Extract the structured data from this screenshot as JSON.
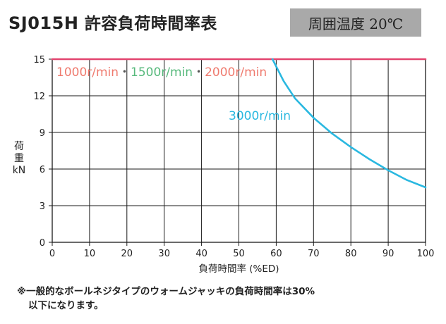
{
  "title": {
    "model": "SJ015H",
    "text": "許容負荷時間率表"
  },
  "temperature_badge": "周囲温度 20℃",
  "chart_data": {
    "type": "line",
    "xlabel": "負荷時間率 (%ED)",
    "ylabel": [
      "荷",
      "重",
      "kN"
    ],
    "xlim": [
      0,
      100
    ],
    "ylim": [
      0,
      15
    ],
    "xticks": [
      0,
      10,
      20,
      30,
      40,
      50,
      60,
      70,
      80,
      90,
      100
    ],
    "yticks": [
      0,
      3,
      6,
      9,
      12,
      15
    ],
    "grid": true,
    "series": [
      {
        "name": "1000r/min・1500r/min・2000r/min",
        "label_parts": [
          {
            "text": "1000r/min",
            "color": "#ef7b6f"
          },
          {
            "text": "・",
            "color": "#555555"
          },
          {
            "text": "1500r/min",
            "color": "#57b97c"
          },
          {
            "text": "・",
            "color": "#555555"
          },
          {
            "text": "2000r/min",
            "color": "#ef7b6f"
          }
        ],
        "color": "#e2456f",
        "x": [
          0,
          100
        ],
        "y": [
          15,
          15
        ]
      },
      {
        "name": "3000r/min",
        "color": "#2ab8e0",
        "x": [
          59,
          62,
          65,
          70,
          75,
          80,
          85,
          90,
          95,
          100
        ],
        "y": [
          15,
          13.2,
          11.8,
          10.2,
          8.9,
          7.8,
          6.8,
          5.9,
          5.1,
          4.5
        ]
      }
    ]
  },
  "footnote": [
    "※一般的なボールネジタイプのウォームジャッキの負荷時間率は30%",
    "以下になります。"
  ]
}
